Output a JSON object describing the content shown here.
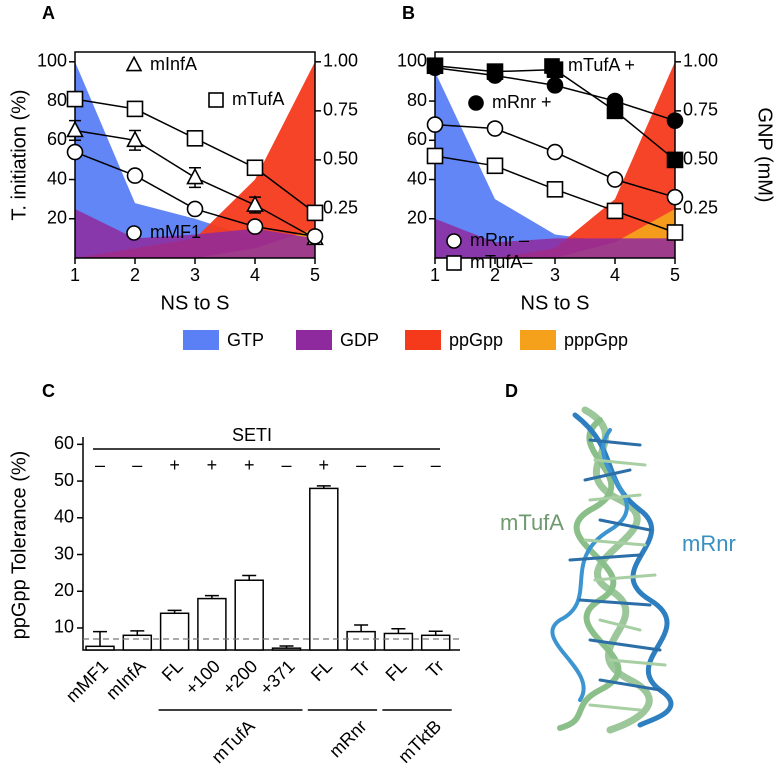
{
  "panel_labels": [
    "A",
    "B",
    "C",
    "D"
  ],
  "chart_data": [
    {
      "type": "line",
      "ylabel": "T. initiation (%)",
      "xlabel": "NS to S",
      "x": [
        1,
        2,
        3,
        4,
        5
      ],
      "xlim": [
        1,
        5
      ],
      "xticks": [
        1,
        2,
        3,
        4,
        5
      ],
      "ylim": [
        0,
        105
      ],
      "yticks": [
        20,
        40,
        60,
        80,
        100
      ],
      "y2lim": [
        0,
        1.05
      ],
      "y2ticks": [
        {
          "value": 0.25,
          "label": "0.25"
        },
        {
          "value": 0.5,
          "label": "0.50"
        },
        {
          "value": 0.75,
          "label": "0.75"
        },
        {
          "value": 1,
          "label": "1.00"
        }
      ],
      "areas": [
        {
          "name": "GTP",
          "color": "#5b80f5",
          "axis": "y2",
          "values": [
            1.0,
            0.28,
            0.2,
            0.1,
            0.05
          ]
        },
        {
          "name": "GDP",
          "color": "#8e2a9e",
          "axis": "y2",
          "values": [
            0.25,
            0.1,
            0.12,
            0.15,
            0.1
          ]
        },
        {
          "name": "ppGpp",
          "color": "#f53a1c",
          "axis": "y2",
          "values": [
            0,
            0.05,
            0.1,
            0.4,
            1.0
          ]
        },
        {
          "name": "pppGpp",
          "color": "#f5a11c",
          "axis": "y2",
          "values": [
            0,
            0,
            0,
            0.05,
            0.15
          ]
        }
      ],
      "series": [
        {
          "name": "mInfA",
          "marker": "triangle",
          "filled": false,
          "values": [
            65,
            60,
            41,
            27,
            10
          ],
          "errors": [
            5,
            5,
            5,
            4,
            1
          ]
        },
        {
          "name": "mTufA",
          "marker": "square",
          "filled": false,
          "values": [
            81,
            76,
            61,
            46,
            23
          ]
        },
        {
          "name": "mMF1",
          "marker": "circle",
          "filled": false,
          "values": [
            54,
            42,
            25,
            16,
            11
          ]
        }
      ]
    },
    {
      "type": "line",
      "y2label": "GNP (mM)",
      "xlabel": "NS to S",
      "x": [
        1,
        2,
        3,
        4,
        5
      ],
      "xlim": [
        1,
        5
      ],
      "xticks": [
        1,
        2,
        3,
        4,
        5
      ],
      "ylim": [
        0,
        105
      ],
      "yticks": [
        20,
        40,
        60,
        80,
        100
      ],
      "y2lim": [
        0,
        1.05
      ],
      "y2ticks": [
        {
          "value": 0.25,
          "label": "0.25"
        },
        {
          "value": 0.5,
          "label": "0.50"
        },
        {
          "value": 0.75,
          "label": "0.75"
        },
        {
          "value": 1,
          "label": "1.00"
        }
      ],
      "areas": [
        {
          "name": "GTP",
          "color": "#5b80f5",
          "axis": "y2",
          "values": [
            0.95,
            0.3,
            0.12,
            0.08,
            0.08
          ]
        },
        {
          "name": "GDP",
          "color": "#8e2a9e",
          "axis": "y2",
          "values": [
            0.2,
            0.08,
            0.1,
            0.1,
            0.1
          ]
        },
        {
          "name": "ppGpp",
          "color": "#f53a1c",
          "axis": "y2",
          "values": [
            0,
            0,
            0.05,
            0.3,
            1.0
          ]
        },
        {
          "name": "pppGpp",
          "color": "#f5a11c",
          "axis": "y2",
          "values": [
            0,
            0,
            0,
            0.08,
            0.25
          ]
        }
      ],
      "series": [
        {
          "name": "mTufA +",
          "marker": "square",
          "filled": true,
          "values": [
            98,
            95,
            96,
            75,
            50
          ]
        },
        {
          "name": "mRnr +",
          "marker": "circle",
          "filled": true,
          "values": [
            97,
            93,
            88,
            80,
            70
          ]
        },
        {
          "name": "mRnr –",
          "marker": "circle",
          "filled": false,
          "values": [
            68,
            66,
            54,
            40,
            31
          ]
        },
        {
          "name": "mTufA–",
          "marker": "square",
          "filled": false,
          "values": [
            52,
            47,
            35,
            24,
            13
          ]
        }
      ]
    },
    {
      "type": "bar",
      "ylabel": "ppGpp Tolerance (%)",
      "categories": [
        "mMF1",
        "mInfA",
        "FL",
        "+100",
        "+200",
        "+371",
        "FL",
        "Tr",
        "FL",
        "Tr"
      ],
      "values": [
        5,
        8,
        14,
        18,
        23,
        4.5,
        48,
        9,
        8.5,
        8
      ],
      "errors": [
        4,
        1.2,
        0.8,
        0.8,
        1.3,
        0.6,
        0.7,
        1.8,
        1.3,
        1.1
      ],
      "ylim": [
        4,
        62
      ],
      "yticks": [
        10,
        20,
        30,
        40,
        50,
        60
      ],
      "reference_line": 7,
      "seti_label": "SETI",
      "seti_signs": [
        "–",
        "–",
        "+",
        "+",
        "+",
        "–",
        "+",
        "–",
        "–",
        "–"
      ],
      "group_labels": [
        "mTufA",
        "mRnr",
        "mTktB"
      ]
    }
  ],
  "figure_d": {
    "labels": [
      "mTufA",
      "mRnr"
    ]
  }
}
